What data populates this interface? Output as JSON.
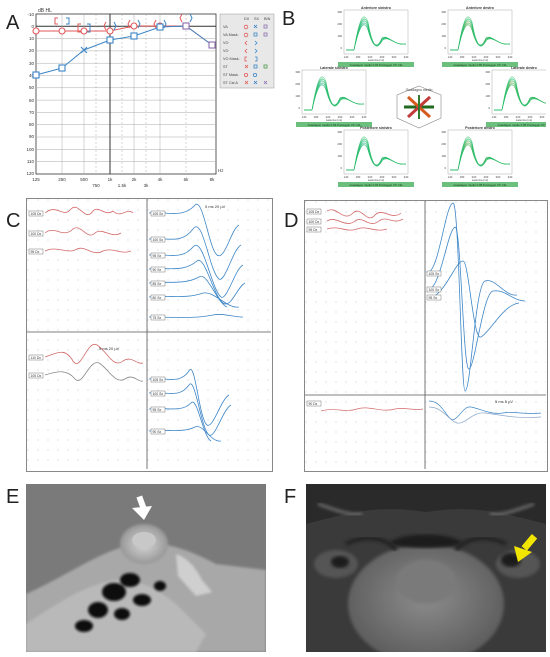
{
  "panels": {
    "a": {
      "letter": "A",
      "unit_top": "dB HL",
      "unit_right": "Hz",
      "y_ticks": [
        "-10",
        "0",
        "10",
        "20",
        "30",
        "40",
        "50",
        "60",
        "70",
        "80",
        "90",
        "100",
        "110",
        "120"
      ],
      "x_ticks": [
        "125",
        "250",
        "500",
        "750",
        "1k",
        "1.5k",
        "2k",
        "3k",
        "4k",
        "6k",
        "8k"
      ],
      "legend_header": [
        "DX",
        "SX",
        "BIN"
      ],
      "legend_rows": [
        "VA",
        "VA Mask.",
        "VO",
        "VO",
        "VO Mask.",
        "ST",
        "ST Mask.",
        "ST Cst A"
      ],
      "colors": {
        "right": "#e05a5a",
        "left": "#3d86c6",
        "overlap": "#8a6fb0"
      }
    },
    "b": {
      "letter": "B",
      "plots": [
        {
          "title": "Anteriore sinistro",
          "footer": "Guadagno medio 0.93   Punteggio VX: NA"
        },
        {
          "title": "Anteriore destro",
          "footer": "Guadagno medio 0.80   Punteggio VX: NA"
        },
        {
          "title": "Laterale sinistro",
          "footer": "Guadagno medio 0.99   Punteggio VX: NA"
        },
        {
          "title": "Laterale destro",
          "footer": "Guadagno medio 0.85   Punteggio VX: NA"
        },
        {
          "title": "Posteriore sinistro",
          "footer": "Guadagno medio 0.93   Punteggio VX: NA"
        },
        {
          "title": "Posteriore destro",
          "footer": "Guadagno medio 0.98   Punteggio VX: NA"
        }
      ],
      "center_label": "Guadagno medio",
      "y_ticks": [
        "300",
        "200",
        "100",
        "0"
      ],
      "x_ticks": [
        "140",
        "180",
        "220",
        "260",
        "300",
        "340"
      ],
      "x_label": "Latenza (ms)"
    },
    "c": {
      "letter": "C",
      "scale_top": "5 ms   20 µV",
      "scale_bottom": "5 ms   20 µV",
      "tags_left_top": [
        "105 Dx",
        "100 Dx",
        "95 Dx"
      ],
      "tags_right_top": [
        "105 Sx",
        "100 Sx",
        "95 Sx",
        "90 Sx",
        "85 Sx",
        "80 Sx",
        "75 Sx"
      ],
      "tags_left_bottom": [
        "110 Dx",
        "105 Dx"
      ],
      "tags_right_bottom": [
        "105 Sx",
        "100 Sx",
        "95 Sx",
        "90 Sx"
      ]
    },
    "d": {
      "letter": "D",
      "scale_bottom": "5 ms   5 µV",
      "tags_left": [
        "105 Dx",
        "100 Dx",
        "95 Dx"
      ],
      "tags_right": [
        "105 Sx",
        "100 Sx",
        "95 Sx"
      ],
      "tags_bottom_left": [
        "90 Dx"
      ]
    },
    "e": {
      "letter": "E"
    },
    "f": {
      "letter": "F"
    }
  }
}
